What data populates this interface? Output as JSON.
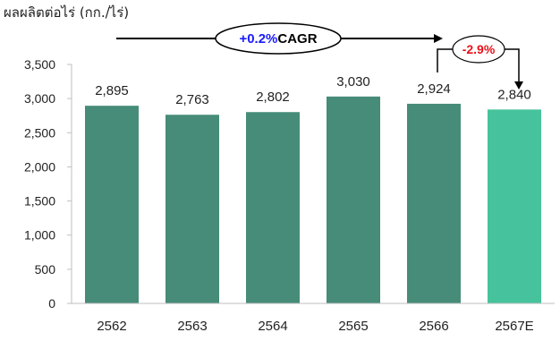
{
  "chart_data": {
    "type": "bar",
    "ylabel": "ผลผลิตต่อไร่ (กก./ไร่)",
    "categories": [
      "2562",
      "2563",
      "2564",
      "2565",
      "2566",
      "2567E"
    ],
    "values": [
      2895,
      2763,
      2802,
      3030,
      2924,
      2840
    ],
    "value_labels": [
      "2,895",
      "2,763",
      "2,802",
      "3,030",
      "2,924",
      "2,840"
    ],
    "ylim": [
      0,
      3500
    ],
    "yticks": [
      0,
      500,
      1000,
      1500,
      2000,
      2500,
      3000,
      3500
    ],
    "ytick_labels": [
      "0",
      "500",
      "1,000",
      "1,500",
      "2,000",
      "2,500",
      "3,000",
      "3,500"
    ],
    "grid": false,
    "colors": {
      "bar": "#468c78",
      "bar_estimate": "#46c39c",
      "axis": "#bfbfbf",
      "cagr_value": "#1a1aff",
      "change_value": "#e8121b"
    },
    "annotations": {
      "cagr": {
        "value": "+0.2%",
        "label": "CAGR"
      },
      "change": {
        "value": "-2.9%"
      }
    }
  }
}
